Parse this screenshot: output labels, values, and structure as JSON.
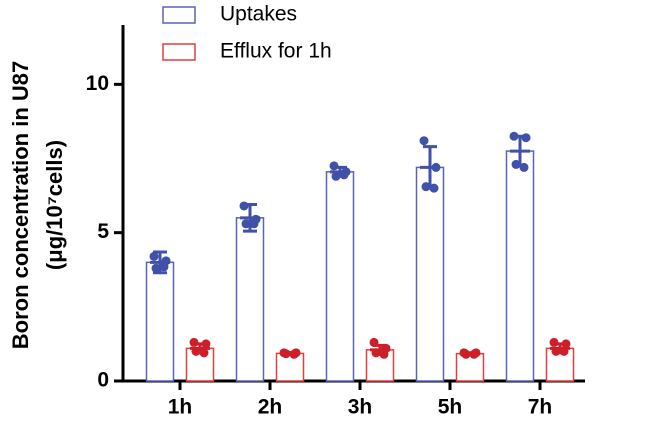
{
  "chart_data": {
    "type": "bar",
    "ylabel": [
      "Boron concentration in U87",
      "(μg/10⁷cells)"
    ],
    "categories": [
      "1h",
      "2h",
      "3h",
      "5h",
      "7h"
    ],
    "series": [
      {
        "name": "Uptakes",
        "color": "#5b63b5",
        "point_color": "#3f51a8",
        "values": [
          4.0,
          5.5,
          7.05,
          7.2,
          7.75
        ],
        "errors": [
          0.35,
          0.45,
          0.15,
          0.7,
          0.5
        ],
        "points": [
          [
            4.2,
            4.05,
            3.8,
            3.85
          ],
          [
            5.9,
            5.45,
            5.3,
            5.3
          ],
          [
            7.25,
            7.05,
            6.9,
            6.95
          ],
          [
            8.1,
            7.2,
            6.55,
            6.5
          ],
          [
            8.25,
            8.2,
            7.3,
            7.2
          ]
        ]
      },
      {
        "name": "Efflux for 1h",
        "color": "#e0403a",
        "point_color": "#cc1f2a",
        "values": [
          1.1,
          0.93,
          1.05,
          0.92,
          1.1
        ],
        "errors": [
          0.15,
          0.03,
          0.15,
          0.03,
          0.15
        ],
        "points": [
          [
            1.3,
            1.25,
            1.0,
            0.95
          ],
          [
            0.95,
            0.95,
            0.92,
            0.9
          ],
          [
            1.3,
            1.1,
            0.95,
            0.9
          ],
          [
            0.95,
            0.95,
            0.9,
            0.9
          ],
          [
            1.3,
            1.25,
            1.0,
            1.0
          ]
        ]
      }
    ],
    "ylim": [
      0,
      12
    ],
    "yticks": [
      0,
      5,
      10
    ],
    "legend": "top-left"
  }
}
